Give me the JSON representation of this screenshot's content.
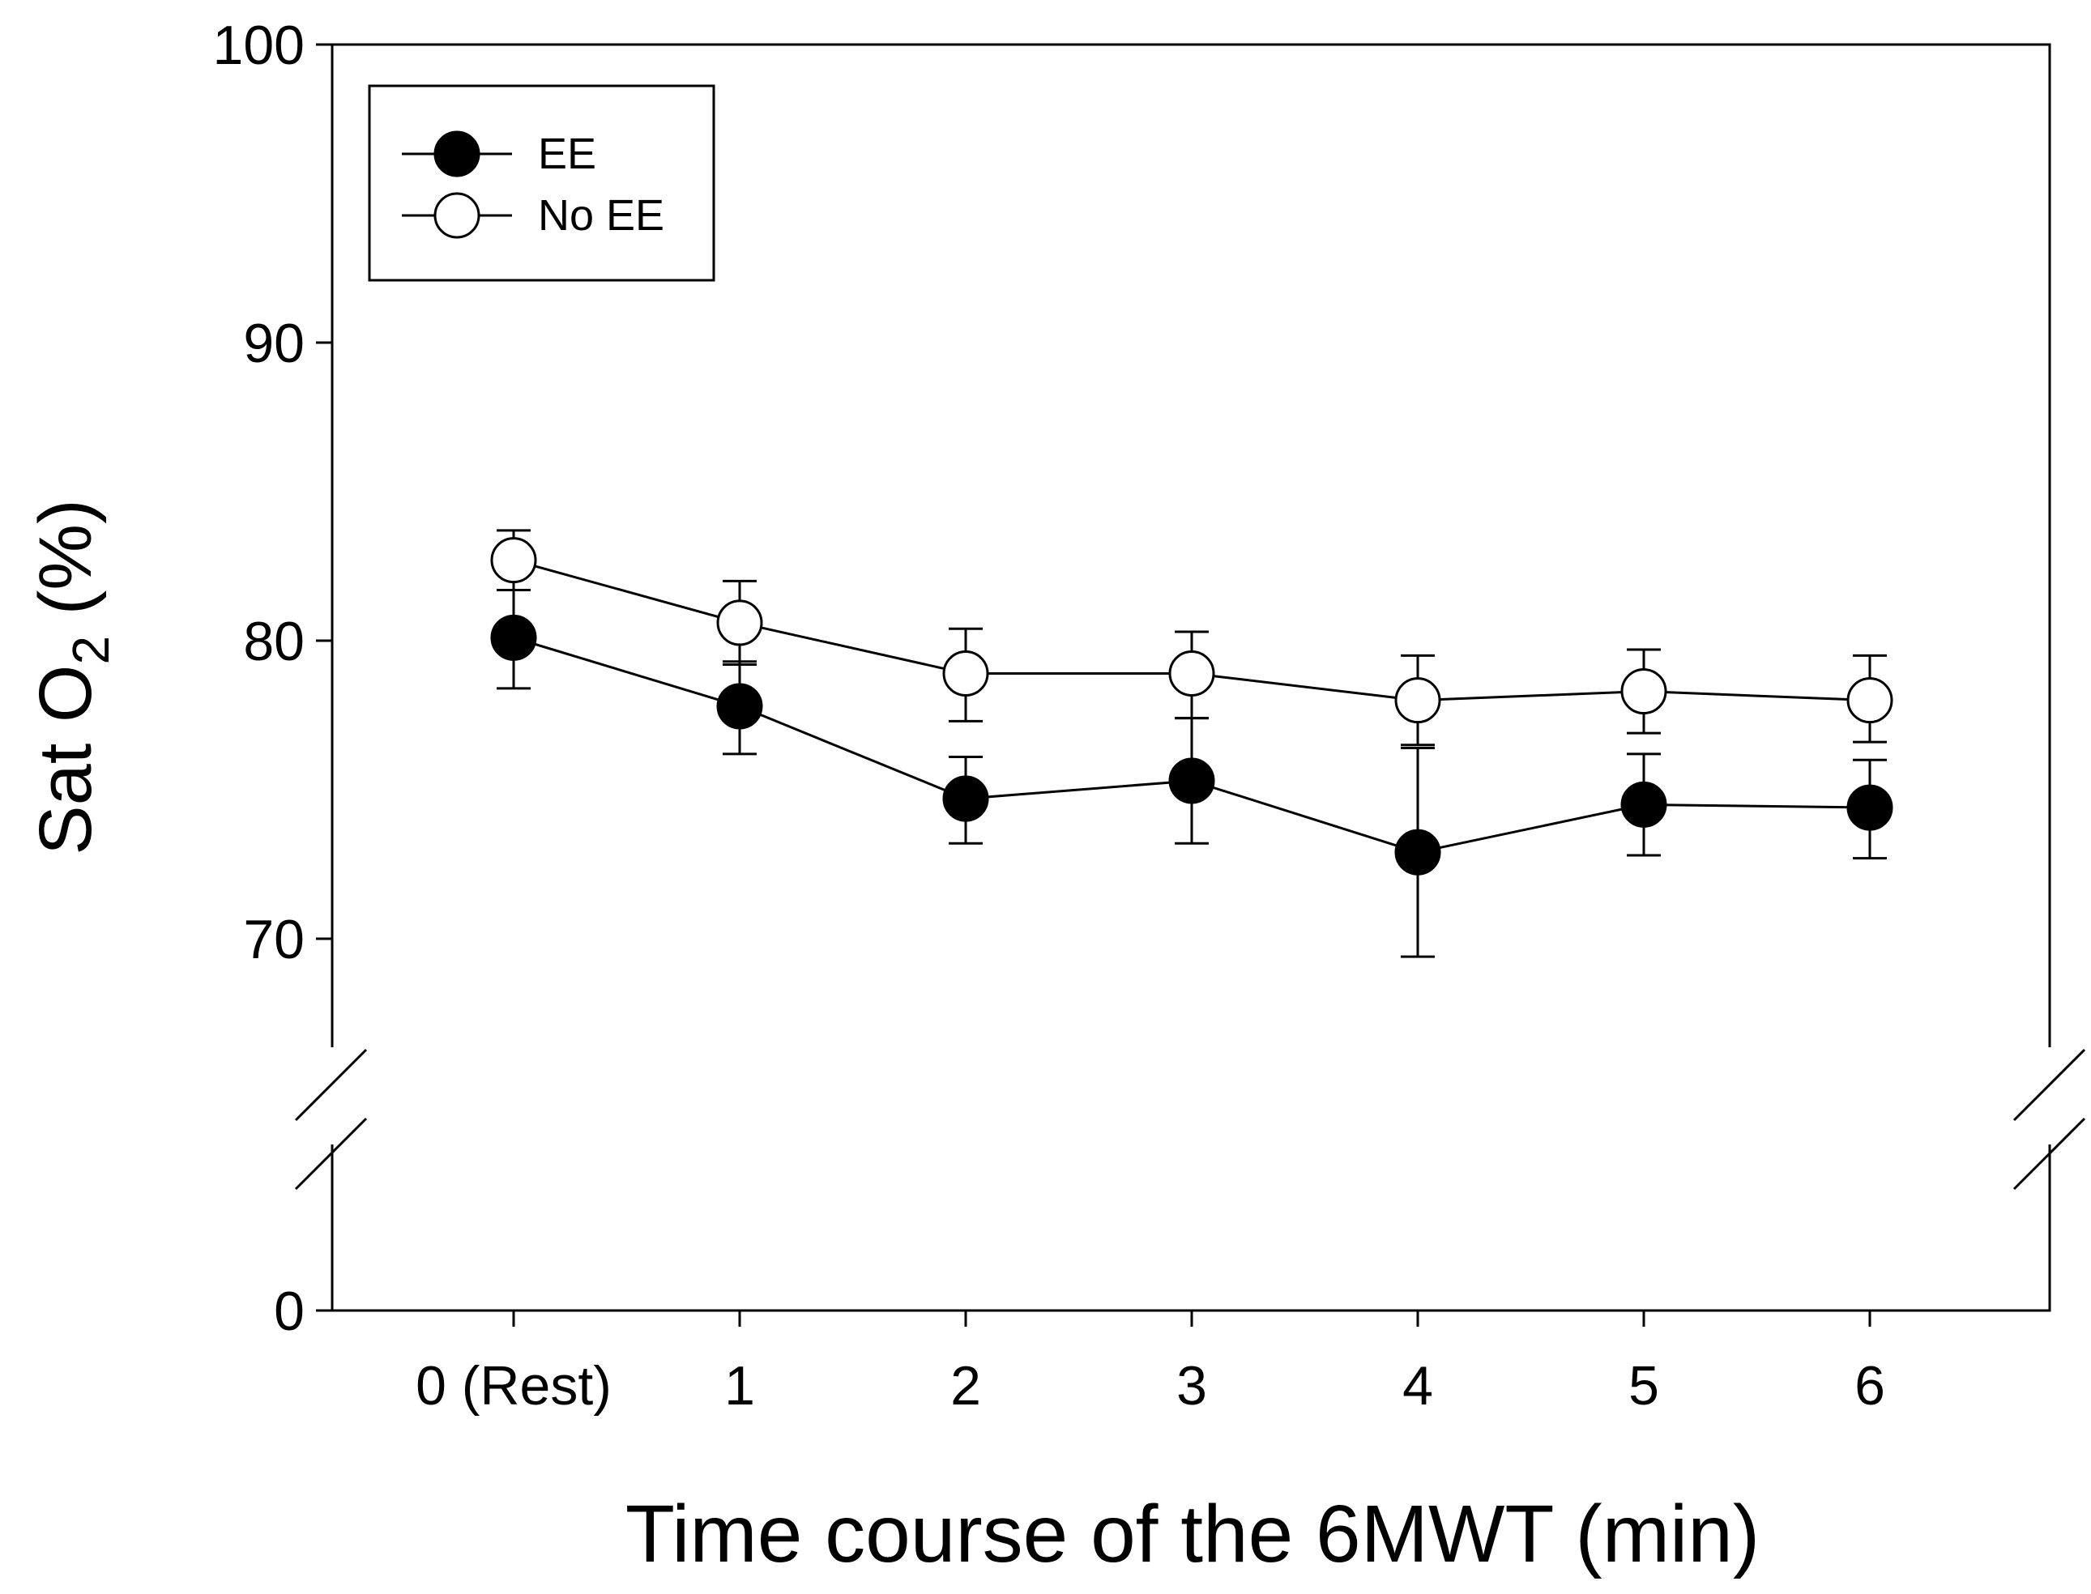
{
  "chart_data": {
    "type": "line",
    "title": "",
    "xlabel": "Time course of the 6MWT (min)",
    "ylabel": "Sat O",
    "ylabel_sub": "2",
    "ylabel_suffix": " (%)",
    "categories": [
      "0 (Rest)",
      "1",
      "2",
      "3",
      "4",
      "5",
      "6"
    ],
    "y_ticks": [
      0,
      70,
      80,
      90,
      100
    ],
    "y_tick_labels": [
      "0",
      "70",
      "80",
      "90",
      "100"
    ],
    "ylim_upper": [
      65,
      100
    ],
    "ylim_lower": [
      0,
      0
    ],
    "axis_break": true,
    "legend_position": "top-left",
    "series": [
      {
        "name": "EE",
        "marker": "filled-circle",
        "values": [
          80.1,
          77.8,
          74.7,
          75.3,
          72.9,
          74.5,
          74.4
        ],
        "err_high": [
          81.7,
          79.3,
          76.1,
          77.4,
          76.4,
          76.2,
          76.0
        ],
        "err_low": [
          78.4,
          76.2,
          73.2,
          73.2,
          69.4,
          72.8,
          72.7
        ]
      },
      {
        "name": "No EE",
        "marker": "open-circle",
        "values": [
          82.7,
          80.6,
          78.9,
          78.9,
          78.0,
          78.3,
          78.0
        ],
        "err_high": [
          83.7,
          82.0,
          80.4,
          80.3,
          79.5,
          79.7,
          79.5
        ],
        "err_low": [
          81.7,
          79.2,
          77.3,
          77.4,
          76.5,
          76.9,
          76.6
        ]
      }
    ]
  }
}
